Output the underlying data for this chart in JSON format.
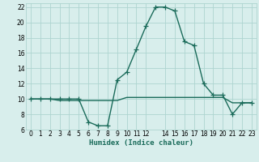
{
  "x": [
    0,
    1,
    2,
    3,
    4,
    5,
    6,
    7,
    8,
    9,
    10,
    11,
    12,
    13,
    14,
    15,
    16,
    17,
    18,
    19,
    20,
    21,
    22,
    23
  ],
  "y_curve": [
    10,
    10,
    10,
    10,
    10,
    10,
    7.0,
    6.5,
    6.5,
    12.5,
    13.5,
    16.5,
    19.5,
    22.0,
    22.0,
    21.5,
    17.5,
    17.0,
    12.0,
    10.5,
    10.5,
    8.0,
    9.5,
    9.5
  ],
  "y_flat": [
    10,
    10,
    10,
    9.8,
    9.8,
    9.8,
    9.8,
    9.8,
    9.8,
    9.8,
    10.2,
    10.2,
    10.2,
    10.2,
    10.2,
    10.2,
    10.2,
    10.2,
    10.2,
    10.2,
    10.2,
    9.5,
    9.5,
    9.5
  ],
  "color": "#1a6b5a",
  "bg_color": "#d8eeec",
  "grid_color": "#aed4d0",
  "xlabel": "Humidex (Indice chaleur)",
  "xlim": [
    -0.5,
    23.5
  ],
  "ylim": [
    6,
    22.5
  ],
  "yticks": [
    6,
    8,
    10,
    12,
    14,
    16,
    18,
    20,
    22
  ],
  "xticks": [
    0,
    1,
    2,
    3,
    4,
    5,
    6,
    7,
    8,
    9,
    10,
    11,
    12,
    14,
    15,
    16,
    17,
    18,
    19,
    20,
    21,
    22,
    23
  ],
  "xtick_labels": [
    "0",
    "1",
    "2",
    "3",
    "4",
    "5",
    "6",
    "7",
    "8",
    "9",
    "10",
    "11",
    "12",
    "14",
    "15",
    "16",
    "17",
    "18",
    "19",
    "20",
    "21",
    "22",
    "23"
  ],
  "marker": "+",
  "markersize": 4,
  "linewidth": 1.0
}
